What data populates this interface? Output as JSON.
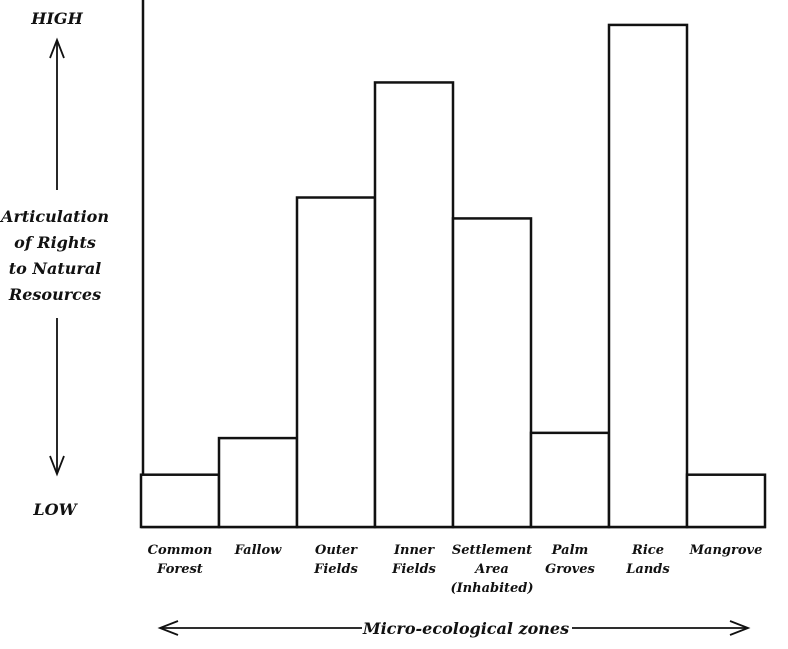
{
  "chart_data": {
    "type": "bar",
    "categories": [
      [
        "Common",
        "Forest"
      ],
      [
        "Fallow"
      ],
      [
        "Outer",
        "Fields"
      ],
      [
        "Inner",
        "Fields"
      ],
      [
        "Settlement",
        "Area",
        "(Inhabited)"
      ],
      [
        "Palm",
        "Groves"
      ],
      [
        "Rice",
        "Lands"
      ],
      [
        "Mangrove"
      ]
    ],
    "values": [
      10,
      17,
      63,
      85,
      59,
      18,
      96,
      10
    ],
    "ylim": [
      0,
      100
    ],
    "y_high_label": "HIGH",
    "y_low_label": "LOW",
    "ylabel": [
      "Articulation",
      "of Rights",
      "to Natural",
      "Resources"
    ],
    "xlabel": "Micro-ecological zones",
    "grid": false,
    "colors": {
      "stroke": "#111111",
      "fill": "#ffffff"
    }
  }
}
